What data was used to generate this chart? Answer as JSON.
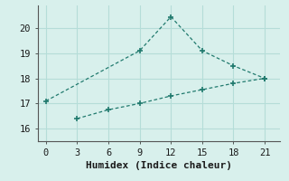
{
  "line1_x": [
    0,
    9,
    12,
    15,
    18,
    21
  ],
  "line1_y": [
    17.1,
    19.1,
    20.45,
    19.1,
    18.5,
    18.0
  ],
  "line2_x": [
    3,
    6,
    9,
    12,
    15,
    18,
    21
  ],
  "line2_y": [
    16.4,
    16.75,
    17.0,
    17.3,
    17.55,
    17.8,
    18.0
  ],
  "line_color": "#217a6e",
  "bg_color": "#d8f0ec",
  "grid_color": "#b5ddd8",
  "xlabel": "Humidex (Indice chaleur)",
  "xticks": [
    0,
    3,
    6,
    9,
    12,
    15,
    18,
    21
  ],
  "yticks": [
    16,
    17,
    18,
    19,
    20
  ],
  "xlim": [
    -0.8,
    22.5
  ],
  "ylim": [
    15.5,
    20.9
  ],
  "tick_fontsize": 7.5,
  "label_fontsize": 8
}
